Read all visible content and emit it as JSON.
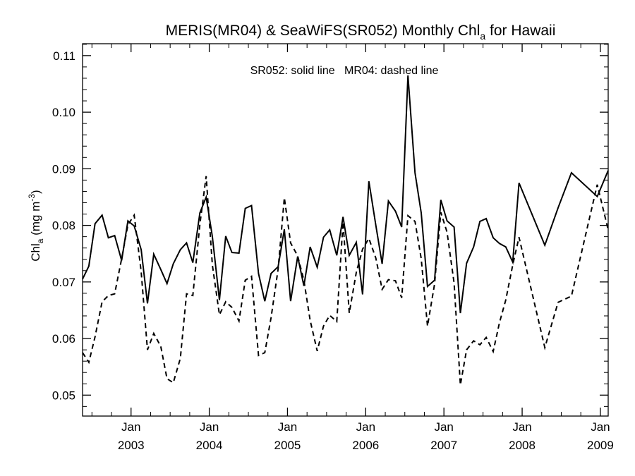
{
  "chart_data": {
    "type": "line",
    "title": "MERIS(MR04) & SeaWiFS(SR052) Monthly Chl",
    "title_sub": "a",
    "title_suffix": " for Hawaii",
    "annotation": "SR052: solid line   MR04: dashed line",
    "ylabel": {
      "main": "Chl",
      "sub": "a",
      "unit_open": " (mg m",
      "sup": "-3",
      "unit_close": ")"
    },
    "xlabel": "",
    "x_unit": "decimal year",
    "xlim": [
      2002.38,
      2009.1
    ],
    "ylim": [
      0.0463,
      0.1121
    ],
    "yticks": [
      0.05,
      0.06,
      0.07,
      0.08,
      0.09,
      0.1,
      0.11
    ],
    "ytick_labels": [
      "0.05",
      "0.06",
      "0.07",
      "0.08",
      "0.09",
      "0.10",
      "0.11"
    ],
    "xticks": [
      {
        "x": 2003.0,
        "month": "Jan",
        "year": "2003"
      },
      {
        "x": 2004.0,
        "month": "Jan",
        "year": "2004"
      },
      {
        "x": 2005.0,
        "month": "Jan",
        "year": "2005"
      },
      {
        "x": 2006.0,
        "month": "Jan",
        "year": "2006"
      },
      {
        "x": 2007.0,
        "month": "Jan",
        "year": "2007"
      },
      {
        "x": 2008.0,
        "month": "Jan",
        "year": "2008"
      },
      {
        "x": 2009.0,
        "month": "Jan",
        "year": "2009"
      }
    ],
    "grid": false,
    "series": [
      {
        "name": "SR052",
        "style": "solid",
        "color": "#000000",
        "points": [
          [
            2002.38,
            0.0705
          ],
          [
            2002.46,
            0.0728
          ],
          [
            2002.54,
            0.0803
          ],
          [
            2002.63,
            0.0818
          ],
          [
            2002.71,
            0.0778
          ],
          [
            2002.79,
            0.0782
          ],
          [
            2002.88,
            0.0738
          ],
          [
            2002.96,
            0.0808
          ],
          [
            2003.04,
            0.0799
          ],
          [
            2003.13,
            0.0757
          ],
          [
            2003.21,
            0.0662
          ],
          [
            2003.29,
            0.0749
          ],
          [
            2003.38,
            0.0722
          ],
          [
            2003.46,
            0.0697
          ],
          [
            2003.54,
            0.0732
          ],
          [
            2003.63,
            0.0757
          ],
          [
            2003.71,
            0.0769
          ],
          [
            2003.79,
            0.0734
          ],
          [
            2003.88,
            0.0822
          ],
          [
            2003.96,
            0.085
          ],
          [
            2004.04,
            0.078
          ],
          [
            2004.13,
            0.0668
          ],
          [
            2004.21,
            0.0781
          ],
          [
            2004.29,
            0.0752
          ],
          [
            2004.38,
            0.0751
          ],
          [
            2004.46,
            0.083
          ],
          [
            2004.54,
            0.0835
          ],
          [
            2004.63,
            0.0715
          ],
          [
            2004.71,
            0.0666
          ],
          [
            2004.79,
            0.0715
          ],
          [
            2004.88,
            0.0727
          ],
          [
            2004.96,
            0.0793
          ],
          [
            2005.04,
            0.0666
          ],
          [
            2005.13,
            0.0745
          ],
          [
            2005.21,
            0.0693
          ],
          [
            2005.29,
            0.0762
          ],
          [
            2005.38,
            0.0726
          ],
          [
            2005.46,
            0.0779
          ],
          [
            2005.54,
            0.0792
          ],
          [
            2005.63,
            0.0747
          ],
          [
            2005.71,
            0.0815
          ],
          [
            2005.79,
            0.0747
          ],
          [
            2005.88,
            0.077
          ],
          [
            2005.96,
            0.0678
          ],
          [
            2006.04,
            0.0878
          ],
          [
            2006.13,
            0.08
          ],
          [
            2006.21,
            0.0732
          ],
          [
            2006.29,
            0.0843
          ],
          [
            2006.38,
            0.0825
          ],
          [
            2006.46,
            0.0797
          ],
          [
            2006.54,
            0.1065
          ],
          [
            2006.63,
            0.0893
          ],
          [
            2006.71,
            0.0822
          ],
          [
            2006.79,
            0.0692
          ],
          [
            2006.88,
            0.0703
          ],
          [
            2006.96,
            0.0845
          ],
          [
            2007.04,
            0.0808
          ],
          [
            2007.13,
            0.0797
          ],
          [
            2007.21,
            0.0645
          ],
          [
            2007.29,
            0.0733
          ],
          [
            2007.38,
            0.0762
          ],
          [
            2007.46,
            0.0807
          ],
          [
            2007.54,
            0.0812
          ],
          [
            2007.63,
            0.0778
          ],
          [
            2007.71,
            0.0768
          ],
          [
            2007.79,
            0.0762
          ],
          [
            2007.88,
            0.0735
          ],
          [
            2007.96,
            0.0875
          ],
          [
            2008.29,
            0.0765
          ],
          [
            2008.46,
            0.0831
          ],
          [
            2008.63,
            0.0893
          ],
          [
            2008.96,
            0.0851
          ],
          [
            2009.1,
            0.0897
          ]
        ]
      },
      {
        "name": "MR04",
        "style": "dashed",
        "color": "#000000",
        "points": [
          [
            2002.38,
            0.0575
          ],
          [
            2002.46,
            0.0558
          ],
          [
            2002.54,
            0.0603
          ],
          [
            2002.63,
            0.0665
          ],
          [
            2002.71,
            0.0676
          ],
          [
            2002.79,
            0.0679
          ],
          [
            2002.88,
            0.0741
          ],
          [
            2002.96,
            0.0801
          ],
          [
            2003.04,
            0.0818
          ],
          [
            2003.13,
            0.0718
          ],
          [
            2003.21,
            0.058
          ],
          [
            2003.29,
            0.0609
          ],
          [
            2003.38,
            0.0586
          ],
          [
            2003.46,
            0.0529
          ],
          [
            2003.54,
            0.0522
          ],
          [
            2003.63,
            0.0565
          ],
          [
            2003.71,
            0.0679
          ],
          [
            2003.79,
            0.0676
          ],
          [
            2003.88,
            0.0802
          ],
          [
            2003.96,
            0.0887
          ],
          [
            2004.04,
            0.073
          ],
          [
            2004.13,
            0.0642
          ],
          [
            2004.21,
            0.0665
          ],
          [
            2004.29,
            0.0655
          ],
          [
            2004.38,
            0.0631
          ],
          [
            2004.46,
            0.0703
          ],
          [
            2004.54,
            0.071
          ],
          [
            2004.63,
            0.057
          ],
          [
            2004.71,
            0.0575
          ],
          [
            2004.79,
            0.0637
          ],
          [
            2004.88,
            0.0723
          ],
          [
            2004.96,
            0.0849
          ],
          [
            2005.04,
            0.0769
          ],
          [
            2005.13,
            0.0746
          ],
          [
            2005.21,
            0.0703
          ],
          [
            2005.29,
            0.0632
          ],
          [
            2005.38,
            0.0578
          ],
          [
            2005.46,
            0.0622
          ],
          [
            2005.54,
            0.0641
          ],
          [
            2005.63,
            0.063
          ],
          [
            2005.71,
            0.0806
          ],
          [
            2005.79,
            0.0645
          ],
          [
            2005.88,
            0.0717
          ],
          [
            2005.96,
            0.0758
          ],
          [
            2006.04,
            0.0777
          ],
          [
            2006.13,
            0.0742
          ],
          [
            2006.21,
            0.0687
          ],
          [
            2006.29,
            0.0704
          ],
          [
            2006.38,
            0.0702
          ],
          [
            2006.46,
            0.0672
          ],
          [
            2006.54,
            0.0817
          ],
          [
            2006.63,
            0.0807
          ],
          [
            2006.71,
            0.0741
          ],
          [
            2006.79,
            0.0622
          ],
          [
            2006.88,
            0.0696
          ],
          [
            2006.96,
            0.0823
          ],
          [
            2007.04,
            0.0788
          ],
          [
            2007.13,
            0.0698
          ],
          [
            2007.21,
            0.0518
          ],
          [
            2007.29,
            0.058
          ],
          [
            2007.38,
            0.0596
          ],
          [
            2007.46,
            0.0589
          ],
          [
            2007.54,
            0.0602
          ],
          [
            2007.63,
            0.0577
          ],
          [
            2007.71,
            0.0628
          ],
          [
            2007.79,
            0.0668
          ],
          [
            2007.88,
            0.073
          ],
          [
            2007.96,
            0.0779
          ],
          [
            2008.29,
            0.0584
          ],
          [
            2008.46,
            0.0664
          ],
          [
            2008.63,
            0.0675
          ],
          [
            2008.96,
            0.0872
          ],
          [
            2009.1,
            0.0792
          ]
        ]
      }
    ]
  }
}
